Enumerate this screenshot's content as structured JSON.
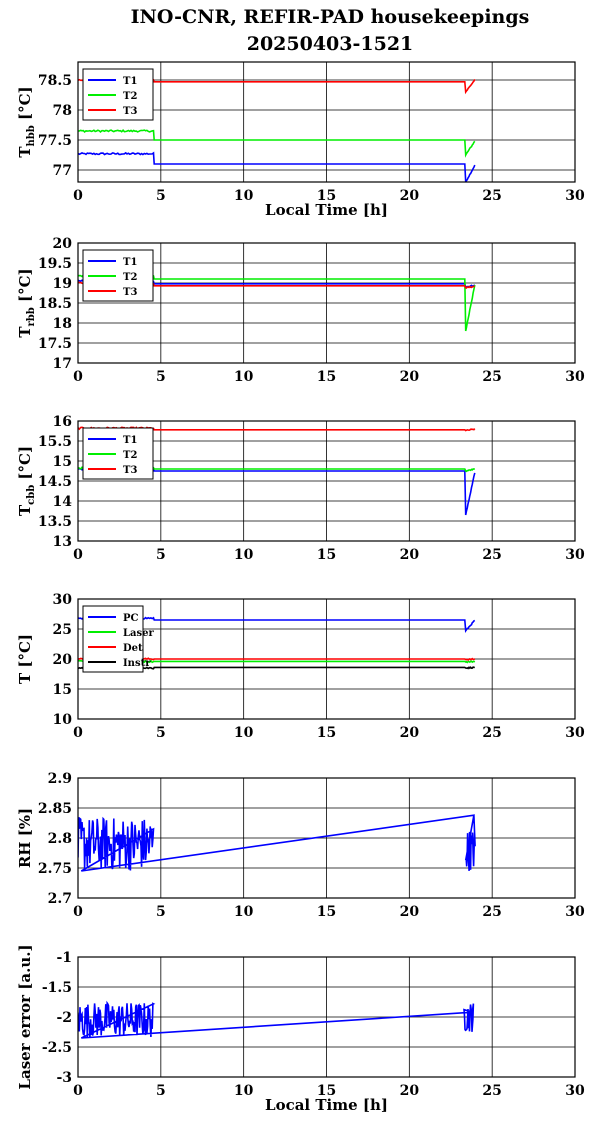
{
  "title": {
    "line1": "INO-CNR, REFIR-PAD housekeepings",
    "line2": "20250403-1521"
  },
  "colors": {
    "blue": "#0000ff",
    "green": "#00ee00",
    "red": "#ff0000",
    "black": "#000000"
  },
  "chart_data": [
    {
      "type": "line",
      "ylabel": "T",
      "ylabel_sub": "hbb",
      "ylabel_unit": " [°C]",
      "xlabel": "Local Time [h]",
      "xlim": [
        0,
        30
      ],
      "ylim": [
        76.8,
        78.8
      ],
      "xticks": [
        "0",
        "5",
        "10",
        "15",
        "20",
        "25",
        "30"
      ],
      "yticks": [
        {
          "v": 77,
          "t": "77"
        },
        {
          "v": 77.5,
          "t": "77.5"
        },
        {
          "v": 78,
          "t": "78"
        },
        {
          "v": 78.5,
          "t": "78.5"
        }
      ],
      "grid": true,
      "legend": "top-left",
      "series": [
        {
          "name": "T1",
          "color": "#0000ff",
          "base": 77.1,
          "early": 77.27,
          "late_end": 77.1,
          "late_dip": 76.8
        },
        {
          "name": "T2",
          "color": "#00ee00",
          "base": 77.5,
          "early": 77.65,
          "late_end": 77.5,
          "late_dip": 77.25
        },
        {
          "name": "T3",
          "color": "#ff0000",
          "base": 78.47,
          "early": 78.5,
          "late_end": 78.52,
          "late_dip": 78.3
        }
      ]
    },
    {
      "type": "line",
      "ylabel": "T",
      "ylabel_sub": "rbb",
      "ylabel_unit": " [°C]",
      "xlabel": "",
      "xlim": [
        0,
        30
      ],
      "ylim": [
        17,
        20
      ],
      "xticks": [
        "0",
        "5",
        "10",
        "15",
        "20",
        "25",
        "30"
      ],
      "yticks": [
        {
          "v": 17,
          "t": "17"
        },
        {
          "v": 17.5,
          "t": "17.5"
        },
        {
          "v": 18,
          "t": "18"
        },
        {
          "v": 18.5,
          "t": "18.5"
        },
        {
          "v": 19,
          "t": "19"
        },
        {
          "v": 19.5,
          "t": "19.5"
        },
        {
          "v": 20,
          "t": "20"
        }
      ],
      "grid": true,
      "legend": "top-left",
      "series": [
        {
          "name": "T1",
          "color": "#0000ff",
          "base": 18.98,
          "early": 19.05,
          "late_end": 18.95,
          "late_dip": 18.9
        },
        {
          "name": "T2",
          "color": "#00ee00",
          "base": 19.1,
          "early": 19.18,
          "late_end": 19.05,
          "late_dip": 17.8
        },
        {
          "name": "T3",
          "color": "#ff0000",
          "base": 18.93,
          "early": 19.0,
          "late_end": 18.92,
          "late_dip": 18.88
        }
      ]
    },
    {
      "type": "line",
      "ylabel": "T",
      "ylabel_sub": "cbb",
      "ylabel_unit": " [°C]",
      "xlabel": "",
      "xlim": [
        0,
        30
      ],
      "ylim": [
        13,
        16
      ],
      "xticks": [
        "0",
        "5",
        "10",
        "15",
        "20",
        "25",
        "30"
      ],
      "yticks": [
        {
          "v": 13,
          "t": "13"
        },
        {
          "v": 13.5,
          "t": "13.5"
        },
        {
          "v": 14,
          "t": "14"
        },
        {
          "v": 14.5,
          "t": "14.5"
        },
        {
          "v": 15,
          "t": "15"
        },
        {
          "v": 15.5,
          "t": "15.5"
        },
        {
          "v": 16,
          "t": "16"
        }
      ],
      "grid": true,
      "legend": "top-left",
      "series": [
        {
          "name": "T1",
          "color": "#0000ff",
          "base": 14.75,
          "early": 14.8,
          "late_end": 14.8,
          "late_dip": 13.65
        },
        {
          "name": "T2",
          "color": "#00ee00",
          "base": 14.8,
          "early": 14.82,
          "late_end": 14.8,
          "late_dip": 14.75
        },
        {
          "name": "T3",
          "color": "#ff0000",
          "base": 15.78,
          "early": 15.82,
          "late_end": 15.8,
          "late_dip": 15.76
        }
      ]
    },
    {
      "type": "line",
      "ylabel": "T [°C]",
      "ylabel_sub": "",
      "ylabel_unit": "",
      "xlabel": "",
      "xlim": [
        0,
        30
      ],
      "ylim": [
        10,
        30
      ],
      "xticks": [
        "0",
        "5",
        "10",
        "15",
        "20",
        "25",
        "30"
      ],
      "yticks": [
        {
          "v": 10,
          "t": "10"
        },
        {
          "v": 15,
          "t": "15"
        },
        {
          "v": 20,
          "t": "20"
        },
        {
          "v": 25,
          "t": "25"
        },
        {
          "v": 30,
          "t": "30"
        }
      ],
      "grid": true,
      "legend": "top-left",
      "series": [
        {
          "name": "PC",
          "color": "#0000ff",
          "base": 26.5,
          "early": 26.8,
          "late_end": 26.6,
          "late_dip": 24.7
        },
        {
          "name": "Laser",
          "color": "#00ee00",
          "base": 19.6,
          "early": 19.6,
          "late_end": 19.6,
          "late_dip": 19.5
        },
        {
          "name": "Det",
          "color": "#ff0000",
          "base": 20.0,
          "early": 20.0,
          "late_end": 20.0,
          "late_dip": 19.9
        },
        {
          "name": "Instr",
          "color": "#000000",
          "base": 18.6,
          "early": 18.5,
          "late_end": 18.6,
          "late_dip": 18.5
        }
      ]
    },
    {
      "type": "line",
      "ylabel": "RH [%]",
      "ylabel_sub": "",
      "ylabel_unit": "",
      "xlabel": "",
      "xlim": [
        0,
        30
      ],
      "ylim": [
        2.7,
        2.9
      ],
      "xticks": [
        "0",
        "5",
        "10",
        "15",
        "20",
        "25",
        "30"
      ],
      "yticks": [
        {
          "v": 2.7,
          "t": "2.7"
        },
        {
          "v": 2.75,
          "t": "2.75"
        },
        {
          "v": 2.8,
          "t": "2.8"
        },
        {
          "v": 2.85,
          "t": "2.85"
        },
        {
          "v": 2.9,
          "t": "2.9"
        }
      ],
      "grid": true,
      "legend": "none",
      "series": [
        {
          "name": "",
          "color": "#0000ff",
          "noisy_start": 0,
          "noisy_end": 4.6,
          "noisy_mid": 2.79,
          "noisy_amp": 0.045,
          "line_from": [
            0.2,
            2.745
          ],
          "line_to": [
            23.9,
            2.838
          ],
          "late_noise": [
            23.4,
            24.0,
            2.78,
            0.035
          ]
        }
      ]
    },
    {
      "type": "line",
      "ylabel": "Laser error [a.u.]",
      "ylabel_sub": "",
      "ylabel_unit": "",
      "xlabel": "Local Time [h]",
      "xlim": [
        0,
        30
      ],
      "ylim": [
        -3,
        -1
      ],
      "xticks": [
        "0",
        "5",
        "10",
        "15",
        "20",
        "25",
        "30"
      ],
      "yticks": [
        {
          "v": -3,
          "t": "-3"
        },
        {
          "v": -2.5,
          "t": "-2.5"
        },
        {
          "v": -2,
          "t": "-2"
        },
        {
          "v": -1.5,
          "t": "-1.5"
        },
        {
          "v": -1,
          "t": "-1"
        }
      ],
      "grid": true,
      "legend": "none",
      "series": [
        {
          "name": "",
          "color": "#0000ff",
          "noisy_start": 0,
          "noisy_end": 4.6,
          "noisy_mid": -2.05,
          "noisy_amp": 0.3,
          "line_from": [
            0.2,
            -2.35
          ],
          "line_to": [
            23.8,
            -1.92
          ],
          "late_noise": [
            23.3,
            23.9,
            -2.0,
            0.25
          ]
        }
      ]
    }
  ]
}
